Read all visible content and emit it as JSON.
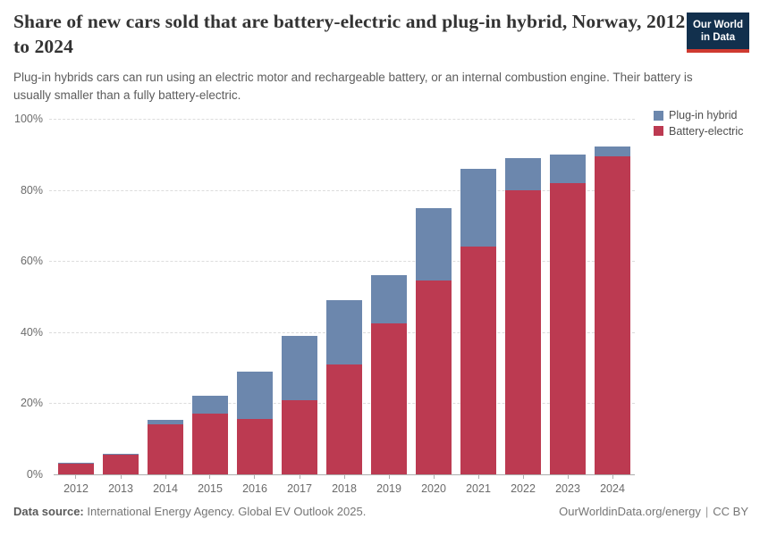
{
  "header": {
    "title": "Share of new cars sold that are battery-electric and plug-in hybrid, Norway, 2012 to 2024",
    "subtitle": "Plug-in hybrids cars can run using an electric motor and rechargeable battery, or an internal combustion engine. Their battery is usually smaller than a fully battery-electric.",
    "logo": {
      "line1": "Our World",
      "line2": "in Data"
    }
  },
  "colors": {
    "battery_electric": "#bc3a51",
    "plugin_hybrid": "#6c87ad",
    "logo_bg": "#12304d",
    "logo_accent": "#cf3a30"
  },
  "chart_data": {
    "type": "bar",
    "stacked": true,
    "title": "Share of new cars sold that are battery-electric and plug-in hybrid, Norway, 2012 to 2024",
    "categories": [
      "2012",
      "2013",
      "2014",
      "2015",
      "2016",
      "2017",
      "2018",
      "2019",
      "2020",
      "2021",
      "2022",
      "2023",
      "2024"
    ],
    "series": [
      {
        "name": "Battery-electric",
        "color": "#bc3a51",
        "values": [
          3.0,
          5.6,
          14.0,
          17.0,
          15.5,
          20.8,
          31.0,
          42.5,
          54.5,
          64.0,
          80.0,
          82.0,
          89.5
        ]
      },
      {
        "name": "Plug-in hybrid",
        "color": "#6c87ad",
        "values": [
          0.3,
          0.3,
          1.3,
          5.0,
          13.5,
          18.2,
          18.0,
          13.5,
          20.5,
          22.0,
          9.0,
          8.0,
          2.7
        ]
      }
    ],
    "legend": [
      {
        "label": "Plug-in hybrid",
        "color": "#6c87ad"
      },
      {
        "label": "Battery-electric",
        "color": "#bc3a51"
      }
    ],
    "legend_position": "top-right",
    "xlabel": "",
    "ylabel": "",
    "ylim": [
      0,
      100
    ],
    "yticks": [
      0,
      20,
      40,
      60,
      80,
      100
    ],
    "ytick_suffix": "%",
    "grid": "horizontal-dashed"
  },
  "footer": {
    "source_label": "Data source:",
    "source_text": "International Energy Agency. Global EV Outlook 2025.",
    "site_text": "OurWorldinData.org/energy",
    "separator": "|",
    "license_text": "CC BY"
  }
}
